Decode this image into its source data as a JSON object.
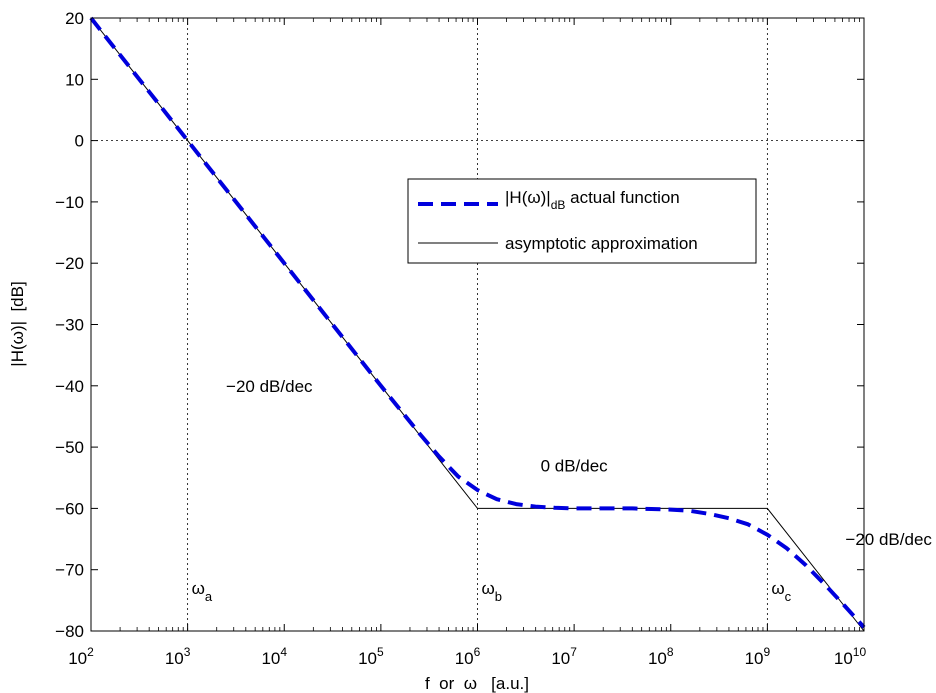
{
  "chart_data": {
    "type": "line",
    "title": "",
    "xlabel": "f  or  ω   [a.u.]",
    "ylabel": "|H(ω)|  [dB]",
    "x_scale": "log",
    "xlim": [
      100,
      10000000000
    ],
    "ylim": [
      -80,
      20
    ],
    "x_ticks": [
      {
        "value": 100,
        "base": "10",
        "exp": "2"
      },
      {
        "value": 1000,
        "base": "10",
        "exp": "3"
      },
      {
        "value": 10000,
        "base": "10",
        "exp": "4"
      },
      {
        "value": 100000,
        "base": "10",
        "exp": "5"
      },
      {
        "value": 1000000,
        "base": "10",
        "exp": "6"
      },
      {
        "value": 10000000,
        "base": "10",
        "exp": "7"
      },
      {
        "value": 100000000,
        "base": "10",
        "exp": "8"
      },
      {
        "value": 1000000000,
        "base": "10",
        "exp": "9"
      },
      {
        "value": 10000000000,
        "base": "10",
        "exp": "10"
      }
    ],
    "y_ticks": [
      {
        "value": 20,
        "label": "20"
      },
      {
        "value": 10,
        "label": "10"
      },
      {
        "value": 0,
        "label": "0"
      },
      {
        "value": -10,
        "label": "−10"
      },
      {
        "value": -20,
        "label": "−20"
      },
      {
        "value": -30,
        "label": "−30"
      },
      {
        "value": -40,
        "label": "−40"
      },
      {
        "value": -50,
        "label": "−50"
      },
      {
        "value": -60,
        "label": "−60"
      },
      {
        "value": -70,
        "label": "−70"
      },
      {
        "value": -80,
        "label": "−80"
      }
    ],
    "grid": "dotted lines at x = 1e3, 1e6, 1e9 and y = 0",
    "reference_lines": {
      "x": [
        1000,
        1000000,
        1000000000
      ],
      "y": [
        0
      ]
    },
    "series": [
      {
        "name": "actual function",
        "style": "dashed",
        "color": "#0000dd",
        "x": [
          100,
          158,
          251,
          398,
          631,
          1000,
          1585,
          2512,
          3981,
          6310,
          10000,
          15849,
          25119,
          39811,
          63096,
          100000,
          158489,
          251189,
          398107,
          630957,
          1000000,
          1584893,
          2511886,
          3981072,
          6309573,
          10000000,
          15848932,
          25118864,
          39810717,
          63095734,
          100000000,
          158489319,
          251188643,
          398107171,
          630957344,
          1000000000,
          1584893192,
          2511886432,
          3981071706,
          6309573445,
          10000000000
        ],
        "y": [
          20,
          16,
          12,
          8,
          4,
          0,
          -4,
          -8,
          -12,
          -16,
          -20,
          -24,
          -28,
          -32,
          -36,
          -40,
          -43.9,
          -47.8,
          -51.5,
          -54.8,
          -57.0,
          -58.5,
          -59.3,
          -59.7,
          -59.9,
          -60.0,
          -60.0,
          -60.0,
          -60.0,
          -60.1,
          -60.2,
          -60.4,
          -60.9,
          -61.6,
          -62.6,
          -64.3,
          -66.5,
          -69.3,
          -72.5,
          -75.9,
          -79.4
        ]
      },
      {
        "name": "asymptotic approximation",
        "style": "solid",
        "color": "#000000",
        "x": [
          100,
          1000000,
          1000000000,
          10000000000
        ],
        "y": [
          20,
          -60,
          -60,
          -80
        ]
      }
    ],
    "legend": {
      "placement": "upper right, inside plot",
      "entries": [
        {
          "prefix": "|H(ω)|",
          "sub": "dB",
          "suffix": " actual function"
        },
        {
          "text": "asymptotic approximation"
        }
      ]
    },
    "annotations": [
      {
        "text": "−20 dB/dec",
        "x": 7000,
        "y": -41
      },
      {
        "text": "0 dB/dec",
        "x": 10000000,
        "y": -54
      },
      {
        "text": "−20 dB/dec",
        "x": 18000000000,
        "y": -66
      }
    ],
    "omega_labels": [
      {
        "symbol": "ω",
        "sub": "a",
        "x": 1000,
        "y": -73
      },
      {
        "symbol": "ω",
        "sub": "b",
        "x": 1000000,
        "y": -73
      },
      {
        "symbol": "ω",
        "sub": "c",
        "x": 1000000000,
        "y": -73
      }
    ]
  }
}
